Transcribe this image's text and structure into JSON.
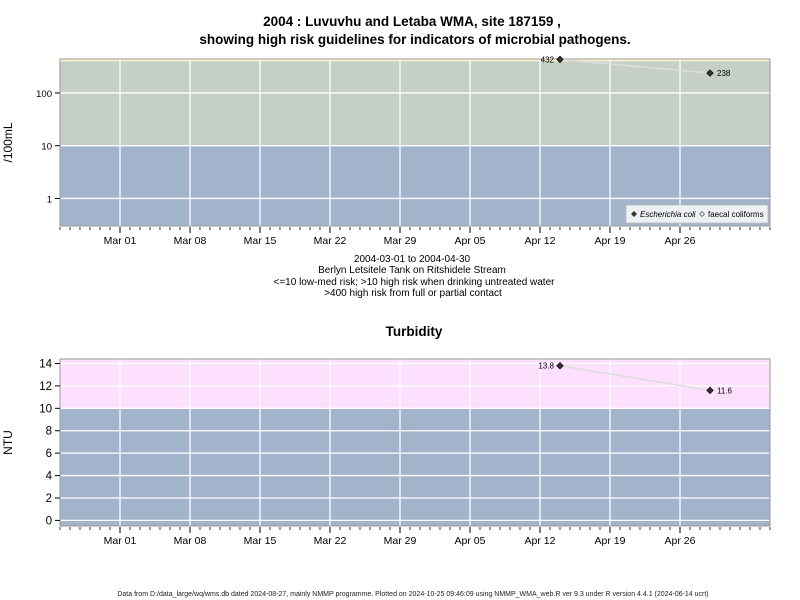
{
  "chart_data": [
    {
      "type": "line",
      "title": "2004 : Luvuvhu and Letaba WMA, site 187159 ,",
      "title2": "showing high risk guidelines for indicators of microbial pathogens.",
      "ylabel": "/100mL",
      "yscale": "log",
      "ylim": [
        0.3,
        440
      ],
      "yticks": [
        1,
        10,
        100
      ],
      "ytick_labels": [
        "1",
        "10",
        "100"
      ],
      "xlim": [
        "2004-02-24",
        "2004-05-05"
      ],
      "xticks": [
        "2004-03-01",
        "2004-03-08",
        "2004-03-15",
        "2004-03-22",
        "2004-03-29",
        "2004-04-05",
        "2004-04-12",
        "2004-04-19",
        "2004-04-26"
      ],
      "xtick_labels": [
        "Mar 01",
        "Mar 08",
        "Mar 15",
        "Mar 22",
        "Mar 29",
        "Apr 05",
        "Apr 12",
        "Apr 19",
        "Apr 26"
      ],
      "bands": [
        {
          "from": 0.3,
          "to": 10,
          "color": "#a2b4cc"
        },
        {
          "from": 10,
          "to": 400,
          "color": "#c5cfc5"
        },
        {
          "from": 400,
          "to": 440,
          "color": "#fbf6c8"
        }
      ],
      "series": [
        {
          "name": "Escherichia coli",
          "color": "#333333",
          "marker": "filled-diamond",
          "x": [
            "2004-04-14",
            "2004-04-29"
          ],
          "y": [
            432,
            238
          ],
          "labels": [
            "432",
            "238"
          ]
        },
        {
          "name": "faecal coliforms",
          "color": "#555555",
          "marker": "open-diamond",
          "x": [],
          "y": []
        }
      ],
      "legend_position": "bottom-right",
      "notes": [
        "2004-03-01 to 2004-04-30",
        "Berlyn Letsitele Tank on Ritshidele Stream",
        "<=10 low-med risk; >10 high risk when drinking untreated water",
        ">400 high risk from full or partial contact"
      ]
    },
    {
      "type": "line",
      "title": "Turbidity",
      "ylabel": "NTU",
      "ylim": [
        -0.5,
        14.4
      ],
      "yticks": [
        0,
        2,
        4,
        6,
        8,
        10,
        12,
        14
      ],
      "ytick_labels": [
        "0",
        "2",
        "4",
        "6",
        "8",
        "10",
        "12",
        "14"
      ],
      "xlim": [
        "2004-02-24",
        "2004-05-05"
      ],
      "xticks": [
        "2004-03-01",
        "2004-03-08",
        "2004-03-15",
        "2004-03-22",
        "2004-03-29",
        "2004-04-05",
        "2004-04-12",
        "2004-04-19",
        "2004-04-26"
      ],
      "xtick_labels": [
        "Mar 01",
        "Mar 08",
        "Mar 15",
        "Mar 22",
        "Mar 29",
        "Apr 05",
        "Apr 12",
        "Apr 19",
        "Apr 26"
      ],
      "bands": [
        {
          "from": -0.5,
          "to": 10,
          "color": "#a2b4cc"
        },
        {
          "from": 10,
          "to": 14.4,
          "color": "#fde0fd"
        }
      ],
      "series": [
        {
          "name": "",
          "color": "#333333",
          "marker": "filled-diamond",
          "x": [
            "2004-04-14",
            "2004-04-29"
          ],
          "y": [
            13.8,
            11.6
          ],
          "labels": [
            "13.8",
            "11.6"
          ]
        }
      ]
    }
  ],
  "footer": "Data from D:/data_large/wq/wms.db dated 2024-08-27, mainly NMMP programme. Plotted on 2024-10-25 09:46:09 using NMMP_WMA_web.R ver 9.3 under R version 4.4.1 (2024-06-14 ucrt)",
  "colors": {
    "grid": "#ffffff",
    "frame": "#9a9a9a",
    "connector": "#dddddd"
  }
}
